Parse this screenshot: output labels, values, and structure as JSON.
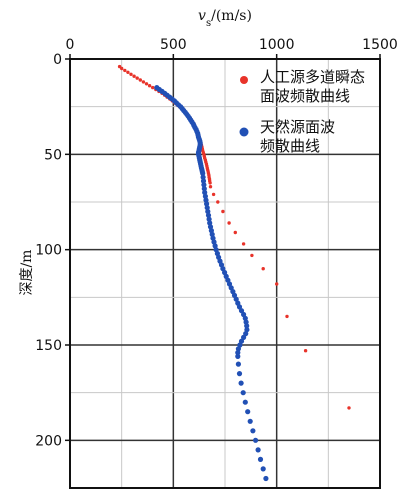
{
  "chart_data": {
    "type": "scatter",
    "title": "",
    "xlabel": "v_s/(m/s)",
    "xlabel_main": "v",
    "xlabel_sub": "s",
    "xlabel_unit": "/(m/s)",
    "ylabel": "深度/m",
    "xlim": [
      0,
      1500
    ],
    "ylim": [
      0,
      225
    ],
    "y_inverted": true,
    "x_axis_position": "top",
    "grid": true,
    "legend_position": "top-right",
    "x_ticks": [
      "0",
      "500",
      "1000",
      "1500"
    ],
    "y_ticks": [
      "0",
      "50",
      "100",
      "150",
      "200"
    ],
    "series": [
      {
        "name": "人工源多道瞬态面波频散曲线",
        "name_line1": "人工源多道瞬态",
        "name_line2": "面波频散曲线",
        "color": "#e8332a",
        "points": [
          [
            240,
            4
          ],
          [
            250,
            5
          ],
          [
            265,
            6
          ],
          [
            280,
            7
          ],
          [
            295,
            8
          ],
          [
            310,
            9
          ],
          [
            325,
            10
          ],
          [
            340,
            11
          ],
          [
            355,
            12
          ],
          [
            370,
            13
          ],
          [
            385,
            14
          ],
          [
            400,
            15
          ],
          [
            415,
            16
          ],
          [
            430,
            17
          ],
          [
            445,
            18
          ],
          [
            458,
            19
          ],
          [
            470,
            20
          ],
          [
            483,
            21
          ],
          [
            495,
            22
          ],
          [
            507,
            23
          ],
          [
            518,
            24
          ],
          [
            530,
            25
          ],
          [
            540,
            26
          ],
          [
            550,
            27
          ],
          [
            560,
            28
          ],
          [
            568,
            29
          ],
          [
            575,
            30
          ],
          [
            582,
            31
          ],
          [
            588,
            32
          ],
          [
            594,
            33
          ],
          [
            600,
            34
          ],
          [
            604,
            35
          ],
          [
            608,
            36
          ],
          [
            612,
            37
          ],
          [
            616,
            38
          ],
          [
            620,
            39
          ],
          [
            622,
            40
          ],
          [
            625,
            41
          ],
          [
            628,
            42
          ],
          [
            630,
            43
          ],
          [
            633,
            44
          ],
          [
            636,
            45
          ],
          [
            638,
            46
          ],
          [
            640,
            47
          ],
          [
            642,
            48
          ],
          [
            645,
            49
          ],
          [
            648,
            50
          ],
          [
            650,
            51
          ],
          [
            652,
            52
          ],
          [
            655,
            53
          ],
          [
            657,
            54
          ],
          [
            660,
            55
          ],
          [
            662,
            56
          ],
          [
            664,
            57
          ],
          [
            666,
            58
          ],
          [
            668,
            59
          ],
          [
            670,
            60
          ],
          [
            672,
            61
          ],
          [
            673,
            62
          ],
          [
            675,
            63
          ],
          [
            676,
            64
          ],
          [
            678,
            65
          ],
          [
            680,
            67
          ],
          [
            695,
            71
          ],
          [
            715,
            75
          ],
          [
            740,
            80
          ],
          [
            770,
            86
          ],
          [
            800,
            91
          ],
          [
            840,
            97
          ],
          [
            880,
            103
          ],
          [
            935,
            110
          ],
          [
            1000,
            118
          ],
          [
            1050,
            135
          ],
          [
            1140,
            153
          ],
          [
            1350,
            183
          ]
        ]
      },
      {
        "name": "天然源面波频散曲线",
        "name_line1": "天然源面波",
        "name_line2": "频散曲线",
        "color": "#2150b5",
        "points": [
          [
            420,
            15
          ],
          [
            432,
            16
          ],
          [
            445,
            17
          ],
          [
            458,
            18
          ],
          [
            470,
            19
          ],
          [
            482,
            20
          ],
          [
            494,
            21
          ],
          [
            505,
            22
          ],
          [
            515,
            23
          ],
          [
            525,
            24
          ],
          [
            535,
            25
          ],
          [
            543,
            26
          ],
          [
            550,
            27
          ],
          [
            558,
            28
          ],
          [
            565,
            29
          ],
          [
            572,
            30
          ],
          [
            578,
            31
          ],
          [
            584,
            32
          ],
          [
            590,
            33
          ],
          [
            596,
            34
          ],
          [
            600,
            35
          ],
          [
            605,
            36
          ],
          [
            610,
            37
          ],
          [
            614,
            38
          ],
          [
            618,
            39
          ],
          [
            620,
            40
          ],
          [
            622,
            41
          ],
          [
            625,
            42
          ],
          [
            628,
            43
          ],
          [
            630,
            44
          ],
          [
            630,
            45
          ],
          [
            628,
            46
          ],
          [
            626,
            47
          ],
          [
            624,
            48
          ],
          [
            622,
            49
          ],
          [
            622,
            50
          ],
          [
            624,
            51
          ],
          [
            626,
            52
          ],
          [
            628,
            53
          ],
          [
            630,
            54
          ],
          [
            632,
            55
          ],
          [
            634,
            56
          ],
          [
            636,
            57
          ],
          [
            638,
            58
          ],
          [
            640,
            59
          ],
          [
            642,
            60
          ],
          [
            644,
            62
          ],
          [
            646,
            64
          ],
          [
            648,
            66
          ],
          [
            650,
            68
          ],
          [
            652,
            70
          ],
          [
            655,
            72
          ],
          [
            658,
            74
          ],
          [
            661,
            76
          ],
          [
            664,
            78
          ],
          [
            667,
            80
          ],
          [
            670,
            82
          ],
          [
            673,
            84
          ],
          [
            676,
            86
          ],
          [
            680,
            88
          ],
          [
            684,
            90
          ],
          [
            688,
            92
          ],
          [
            692,
            94
          ],
          [
            697,
            96
          ],
          [
            702,
            98
          ],
          [
            707,
            100
          ],
          [
            713,
            102
          ],
          [
            719,
            104
          ],
          [
            726,
            106
          ],
          [
            733,
            108
          ],
          [
            740,
            110
          ],
          [
            748,
            112
          ],
          [
            756,
            114
          ],
          [
            764,
            116
          ],
          [
            772,
            118
          ],
          [
            780,
            120
          ],
          [
            788,
            122
          ],
          [
            796,
            124
          ],
          [
            804,
            126
          ],
          [
            812,
            128
          ],
          [
            820,
            130
          ],
          [
            830,
            132
          ],
          [
            840,
            134
          ],
          [
            848,
            136
          ],
          [
            852,
            138
          ],
          [
            855,
            140
          ],
          [
            856,
            142
          ],
          [
            850,
            144
          ],
          [
            840,
            146
          ],
          [
            830,
            148
          ],
          [
            822,
            150
          ],
          [
            815,
            152
          ],
          [
            812,
            154
          ],
          [
            812,
            156
          ],
          [
            815,
            160
          ],
          [
            820,
            165
          ],
          [
            828,
            170
          ],
          [
            838,
            175
          ],
          [
            848,
            180
          ],
          [
            860,
            185
          ],
          [
            872,
            190
          ],
          [
            885,
            195
          ],
          [
            898,
            200
          ],
          [
            910,
            205
          ],
          [
            922,
            210
          ],
          [
            935,
            215
          ],
          [
            948,
            220
          ]
        ]
      }
    ]
  }
}
